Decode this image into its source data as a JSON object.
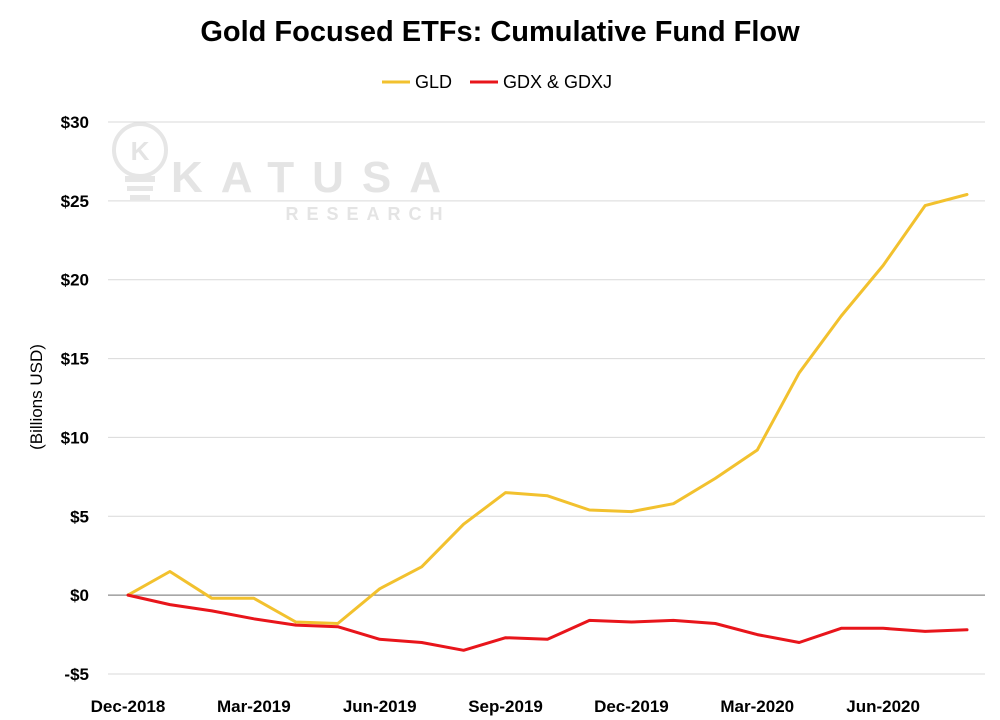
{
  "chart_data": {
    "type": "line",
    "title": "Gold Focused ETFs: Cumulative Fund Flow",
    "xlabel": "",
    "ylabel": "(Billions USD)",
    "ylim": [
      -5,
      30
    ],
    "y_ticks": [
      -5,
      0,
      5,
      10,
      15,
      20,
      25,
      30
    ],
    "y_tick_labels": [
      "-$5",
      "$0",
      "$5",
      "$10",
      "$15",
      "$20",
      "$25",
      "$30"
    ],
    "x_tick_labels": [
      "Dec-2018",
      "Mar-2019",
      "Jun-2019",
      "Sep-2019",
      "Dec-2019",
      "Mar-2020",
      "Jun-2020"
    ],
    "x_tick_indices": [
      0,
      3,
      6,
      9,
      12,
      15,
      18
    ],
    "grid": true,
    "legend_position": "top",
    "series": [
      {
        "name": "GLD",
        "color": "#f2c12e",
        "values": [
          0,
          1.5,
          -0.2,
          -0.2,
          -1.7,
          -1.8,
          0.4,
          1.8,
          4.5,
          6.5,
          6.3,
          5.4,
          5.3,
          5.8,
          7.4,
          9.2,
          14.1,
          17.7,
          20.9,
          24.7,
          25.4
        ]
      },
      {
        "name": "GDX & GDXJ",
        "color": "#e8151b",
        "values": [
          0,
          -0.6,
          -1.0,
          -1.5,
          -1.9,
          -2.0,
          -2.8,
          -3.0,
          -3.5,
          -2.7,
          -2.8,
          -1.6,
          -1.7,
          -1.6,
          -1.8,
          -2.5,
          -3.0,
          -2.1,
          -2.1,
          -2.3,
          -2.2
        ]
      }
    ]
  },
  "watermark": {
    "brand": "KATUSA",
    "sub": "RESEARCH",
    "logo_letter": "K"
  }
}
